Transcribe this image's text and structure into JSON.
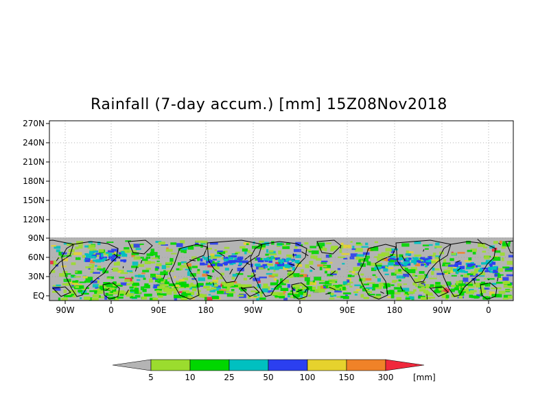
{
  "title": "Rainfall (7-day accum.) [mm] 15Z08Nov2018",
  "lat_labels": [
    "270N",
    "240N",
    "210N",
    "180N",
    "150N",
    "120N",
    "90N",
    "60N",
    "30N",
    "EQ"
  ],
  "lon_labels": [
    "90W",
    "0",
    "90E",
    "180",
    "90W",
    "0",
    "90E",
    "180",
    "90W",
    "0"
  ],
  "colorbar": {
    "unit": "[mm]",
    "bins": [
      {
        "label": "5",
        "color": "#9bdc2e"
      },
      {
        "label": "10",
        "color": "#00d700"
      },
      {
        "label": "25",
        "color": "#00c0c0"
      },
      {
        "label": "50",
        "color": "#2b3ff0"
      },
      {
        "label": "100",
        "color": "#e6d22d"
      },
      {
        "label": "150",
        "color": "#f08228"
      },
      {
        "label": "300",
        "color": "#f0283c"
      }
    ],
    "under_color": "#b4b4b4",
    "over_color": "#f0283c"
  },
  "colors": {
    "no_data": "#ffffff",
    "land_background": "#b4b4b4",
    "coastline": "#000000"
  }
}
